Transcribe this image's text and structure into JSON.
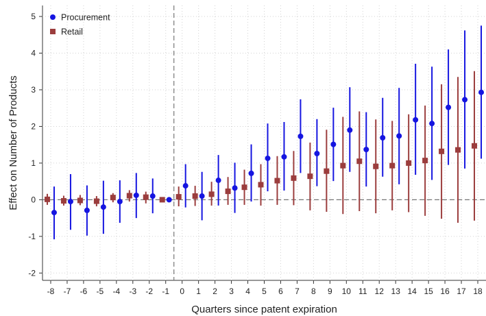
{
  "chart_data": {
    "type": "scatter",
    "subtype": "coefficient plot with confidence intervals",
    "xlabel": "Quarters since patent expiration",
    "ylabel": "Effect on Number of Products",
    "xlim": [
      -8.5,
      18.5
    ],
    "ylim": [
      -2.2,
      5.3
    ],
    "x_ticks": [
      -8,
      -7,
      -6,
      -5,
      -4,
      -3,
      -2,
      -1,
      0,
      1,
      2,
      3,
      4,
      5,
      6,
      7,
      8,
      9,
      10,
      11,
      12,
      13,
      14,
      15,
      16,
      17,
      18
    ],
    "x_tick_labels": [
      "-8",
      "-7",
      "-6",
      "-5",
      "-4",
      "-3",
      "-2",
      "-1",
      "0",
      "1",
      "2",
      "3",
      "4",
      "5",
      "6",
      "7",
      "8",
      "9",
      "10",
      "11",
      "12",
      "13",
      "14",
      "15",
      "16",
      "17",
      "18"
    ],
    "y_ticks": [
      -2,
      -1,
      0,
      1,
      2,
      3,
      4,
      5
    ],
    "y_tick_labels": [
      "-2",
      "-1",
      "0",
      "1",
      "2",
      "3",
      "4",
      "5"
    ],
    "grid": "dotted",
    "reference_lines": {
      "x": -0.5,
      "y": 0
    },
    "legend": {
      "position": "top-left",
      "entries": [
        "Procurement",
        "Retail"
      ]
    },
    "series": [
      {
        "name": "Procurement",
        "marker": "circle",
        "color": "#1515e0",
        "x": [
          -8,
          -7,
          -6,
          -5,
          -4,
          -3,
          -2,
          -1,
          0,
          1,
          2,
          3,
          4,
          5,
          6,
          7,
          8,
          9,
          10,
          11,
          12,
          13,
          14,
          15,
          16,
          17,
          18
        ],
        "y": [
          -0.35,
          -0.05,
          -0.29,
          -0.2,
          -0.05,
          0.12,
          0.1,
          0.0,
          0.38,
          0.1,
          0.53,
          0.32,
          0.72,
          1.13,
          1.17,
          1.73,
          1.26,
          1.51,
          1.9,
          1.37,
          1.69,
          1.74,
          2.18,
          2.08,
          2.52,
          2.73,
          2.93
        ],
        "ci_low": [
          -1.08,
          -0.82,
          -0.98,
          -0.93,
          -0.63,
          -0.5,
          -0.37,
          null,
          -0.21,
          -0.56,
          -0.16,
          -0.36,
          -0.05,
          0.23,
          0.25,
          0.73,
          0.37,
          0.51,
          0.76,
          0.36,
          0.63,
          0.42,
          0.68,
          0.54,
          0.95,
          0.85,
          1.12
        ],
        "ci_high": [
          0.36,
          0.7,
          0.39,
          0.52,
          0.53,
          0.73,
          0.58,
          null,
          0.97,
          0.76,
          1.22,
          1.01,
          1.51,
          2.08,
          2.12,
          2.74,
          2.2,
          2.51,
          3.07,
          2.39,
          2.78,
          3.05,
          3.71,
          3.63,
          4.1,
          4.62,
          4.75
        ]
      },
      {
        "name": "Retail",
        "marker": "square",
        "color": "#9b3d3d",
        "x": [
          -8,
          -7,
          -6,
          -5,
          -4,
          -3,
          -2,
          -1,
          0,
          1,
          2,
          3,
          4,
          5,
          6,
          7,
          8,
          9,
          10,
          11,
          12,
          13,
          14,
          15,
          16,
          17,
          18
        ],
        "y": [
          0.01,
          -0.03,
          -0.02,
          -0.04,
          0.06,
          0.11,
          0.07,
          0.0,
          0.08,
          0.1,
          0.15,
          0.23,
          0.34,
          0.41,
          0.52,
          0.59,
          0.64,
          0.78,
          0.93,
          1.05,
          0.91,
          0.93,
          1.0,
          1.07,
          1.32,
          1.36,
          1.47
        ],
        "ci_low": [
          -0.14,
          -0.16,
          -0.15,
          -0.18,
          -0.07,
          -0.05,
          -0.1,
          null,
          -0.18,
          -0.17,
          -0.16,
          -0.14,
          -0.14,
          -0.16,
          -0.14,
          -0.15,
          -0.29,
          -0.33,
          -0.39,
          -0.31,
          -0.37,
          -0.29,
          -0.34,
          -0.44,
          -0.52,
          -0.63,
          -0.57
        ],
        "ci_high": [
          0.16,
          0.11,
          0.13,
          0.1,
          0.18,
          0.26,
          0.22,
          null,
          0.36,
          0.38,
          0.49,
          0.62,
          0.82,
          0.97,
          1.19,
          1.33,
          1.56,
          1.91,
          2.26,
          2.41,
          2.19,
          2.15,
          2.33,
          2.57,
          3.15,
          3.35,
          3.51
        ]
      }
    ]
  }
}
